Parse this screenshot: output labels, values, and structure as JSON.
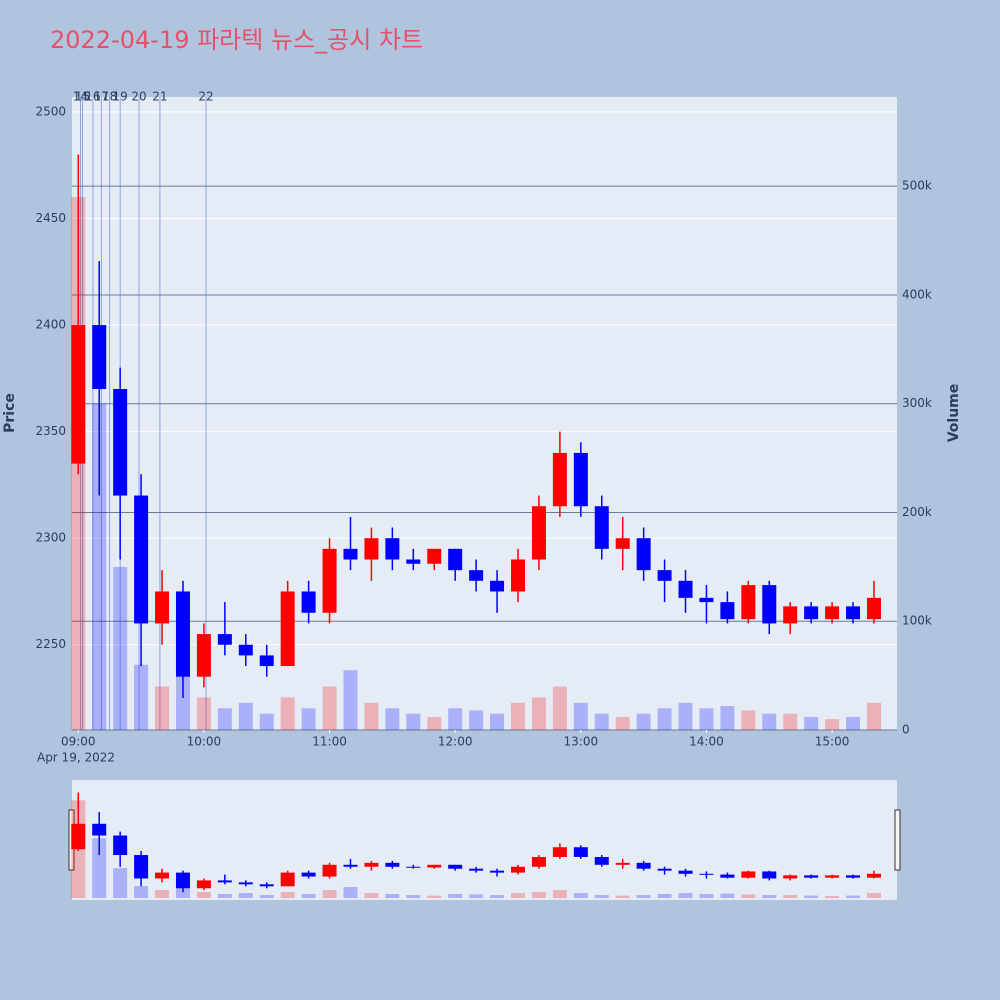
{
  "chart_data": {
    "type": "candlestick",
    "title": "2022-04-19 파라텍 뉴스_공시 차트",
    "y_label": "Price",
    "y2_label": "Volume",
    "x_date_label": "Apr 19, 2022",
    "up_color": "#ff0000",
    "down_color": "#0000ff",
    "x": [
      "2022-04-19 09:00",
      "2022-04-19 09:10",
      "2022-04-19 09:20",
      "2022-04-19 09:30",
      "2022-04-19 09:40",
      "2022-04-19 09:50",
      "2022-04-19 10:00",
      "2022-04-19 10:10",
      "2022-04-19 10:20",
      "2022-04-19 10:30",
      "2022-04-19 10:40",
      "2022-04-19 10:50",
      "2022-04-19 11:00",
      "2022-04-19 11:10",
      "2022-04-19 11:20",
      "2022-04-19 11:30",
      "2022-04-19 11:40",
      "2022-04-19 11:50",
      "2022-04-19 12:00",
      "2022-04-19 12:10",
      "2022-04-19 12:20",
      "2022-04-19 12:30",
      "2022-04-19 12:40",
      "2022-04-19 12:50",
      "2022-04-19 13:00",
      "2022-04-19 13:10",
      "2022-04-19 13:20",
      "2022-04-19 13:30",
      "2022-04-19 13:40",
      "2022-04-19 13:50",
      "2022-04-19 14:00",
      "2022-04-19 14:10",
      "2022-04-19 14:20",
      "2022-04-19 14:30",
      "2022-04-19 14:40",
      "2022-04-19 14:50",
      "2022-04-19 15:00",
      "2022-04-19 15:10",
      "2022-04-19 15:20"
    ],
    "open": [
      2335,
      2400,
      2370,
      2320,
      2260,
      2275,
      2235,
      2255,
      2250,
      2245,
      2240,
      2275,
      2265,
      2295,
      2290,
      2300,
      2290,
      2288,
      2295,
      2285,
      2280,
      2275,
      2290,
      2315,
      2340,
      2315,
      2295,
      2300,
      2285,
      2280,
      2272,
      2270,
      2262,
      2278,
      2260,
      2268,
      2262,
      2268,
      2262
    ],
    "high": [
      2480,
      2430,
      2380,
      2330,
      2285,
      2280,
      2260,
      2270,
      2255,
      2250,
      2280,
      2280,
      2300,
      2310,
      2305,
      2305,
      2295,
      2295,
      2295,
      2290,
      2285,
      2295,
      2320,
      2350,
      2345,
      2320,
      2310,
      2305,
      2290,
      2285,
      2278,
      2275,
      2280,
      2280,
      2270,
      2270,
      2270,
      2270,
      2280
    ],
    "low": [
      2330,
      2320,
      2290,
      2240,
      2250,
      2225,
      2230,
      2245,
      2240,
      2235,
      2240,
      2260,
      2260,
      2285,
      2280,
      2285,
      2285,
      2285,
      2280,
      2275,
      2265,
      2270,
      2285,
      2310,
      2310,
      2290,
      2285,
      2280,
      2270,
      2265,
      2260,
      2260,
      2260,
      2255,
      2255,
      2260,
      2260,
      2260,
      2260
    ],
    "close": [
      2400,
      2370,
      2320,
      2260,
      2275,
      2235,
      2255,
      2250,
      2245,
      2240,
      2275,
      2265,
      2295,
      2290,
      2300,
      2290,
      2288,
      2295,
      2285,
      2280,
      2275,
      2290,
      2315,
      2340,
      2315,
      2295,
      2300,
      2285,
      2280,
      2272,
      2270,
      2262,
      2278,
      2260,
      2268,
      2262,
      2268,
      2262,
      2272
    ],
    "volume": [
      490000,
      300000,
      150000,
      60000,
      40000,
      60000,
      30000,
      20000,
      25000,
      15000,
      30000,
      20000,
      40000,
      55000,
      25000,
      20000,
      15000,
      12000,
      20000,
      18000,
      15000,
      25000,
      30000,
      40000,
      25000,
      15000,
      12000,
      15000,
      20000,
      25000,
      20000,
      22000,
      18000,
      15000,
      15000,
      12000,
      10000,
      12000,
      25000
    ],
    "ylim": [
      2210,
      2507
    ],
    "yticks": [
      2250,
      2300,
      2350,
      2400,
      2450,
      2500
    ],
    "y2lim": [
      0,
      582000
    ],
    "y2ticks": [
      {
        "value": 0,
        "label": "0"
      },
      {
        "value": 100000,
        "label": "100k"
      },
      {
        "value": 200000,
        "label": "200k"
      },
      {
        "value": 300000,
        "label": "300k"
      },
      {
        "value": 400000,
        "label": "400k"
      },
      {
        "value": 500000,
        "label": "500k"
      }
    ],
    "xlim": [
      "2022-04-19 08:57",
      "2022-04-19 15:31"
    ],
    "xticks": [
      {
        "value": "2022-04-19 09:00",
        "label": "09:00"
      },
      {
        "value": "2022-04-19 10:00",
        "label": "10:00"
      },
      {
        "value": "2022-04-19 11:00",
        "label": "11:00"
      },
      {
        "value": "2022-04-19 12:00",
        "label": "12:00"
      },
      {
        "value": "2022-04-19 13:00",
        "label": "13:00"
      },
      {
        "value": "2022-04-19 14:00",
        "label": "14:00"
      },
      {
        "value": "2022-04-19 15:00",
        "label": "15:00"
      }
    ],
    "annotations": [
      {
        "x": "2022-04-19 09:01",
        "label": "14"
      },
      {
        "x": "2022-04-19 09:02",
        "label": "15"
      },
      {
        "x": "2022-04-19 09:07",
        "label": "16"
      },
      {
        "x": "2022-04-19 09:11",
        "label": "17"
      },
      {
        "x": "2022-04-19 09:15",
        "label": "18"
      },
      {
        "x": "2022-04-19 09:20",
        "label": "19"
      },
      {
        "x": "2022-04-19 09:29",
        "label": "20"
      },
      {
        "x": "2022-04-19 09:39",
        "label": "21"
      },
      {
        "x": "2022-04-19 10:01",
        "label": "22"
      }
    ]
  }
}
